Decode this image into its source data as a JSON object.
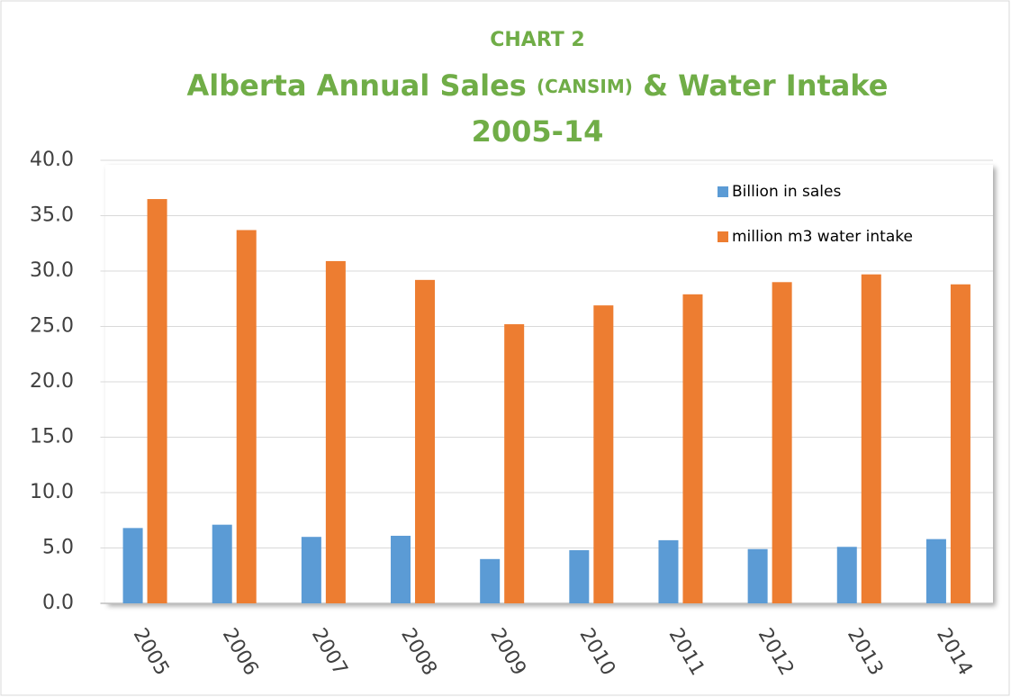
{
  "chart_data": {
    "type": "bar",
    "title": [
      "CHART 2",
      "Alberta Annual Sales",
      "(CANSIM)",
      "& Water Intake",
      "2005-14"
    ],
    "categories": [
      "2005",
      "2006",
      "2007",
      "2008",
      "2009",
      "2010",
      "2011",
      "2012",
      "2013",
      "2014"
    ],
    "series": [
      {
        "name": "Billion in sales",
        "color": "#5b9bd5",
        "values": [
          6.8,
          7.1,
          6.0,
          6.1,
          4.0,
          4.8,
          5.7,
          4.9,
          5.1,
          5.8
        ]
      },
      {
        "name": "million m3 water intake",
        "color": "#ed7d31",
        "values": [
          36.5,
          33.7,
          30.9,
          29.2,
          25.2,
          26.9,
          27.9,
          29.0,
          29.7,
          28.8
        ]
      }
    ],
    "ylim": [
      0,
      40
    ],
    "yticks": [
      {
        "value": 0,
        "label": "0.0"
      },
      {
        "value": 5,
        "label": "5.0"
      },
      {
        "value": 10,
        "label": "10.0"
      },
      {
        "value": 15,
        "label": "15.0"
      },
      {
        "value": 20,
        "label": "20.0"
      },
      {
        "value": 25,
        "label": "25.0"
      },
      {
        "value": 30,
        "label": "30.0"
      },
      {
        "value": 35,
        "label": "35.0"
      },
      {
        "value": 40,
        "label": "40.0"
      }
    ],
    "grid": true,
    "legend": "upper right",
    "title_color": "#70ad47"
  }
}
